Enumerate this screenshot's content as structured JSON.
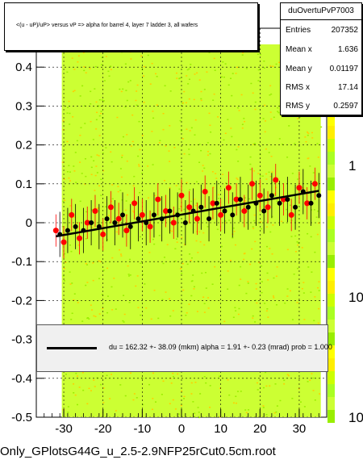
{
  "chart_data": {
    "type": "scatter",
    "title": "<(u - uP)/uP> versus   vP => alpha for barrel 4, layer 7 ladder 3, all wafers",
    "xlim": [
      -37,
      37
    ],
    "ylim": [
      -0.5,
      0.5
    ],
    "x_ticks": [
      -30,
      -20,
      -10,
      0,
      10,
      20,
      30
    ],
    "x_tick_labels": [
      "-30",
      "-20",
      "-10",
      "0",
      "10",
      "20",
      "30"
    ],
    "y_ticks": [
      -0.5,
      -0.4,
      -0.3,
      -0.2,
      -0.1,
      0,
      0.1,
      0.2,
      0.3,
      0.4
    ],
    "y_tick_labels": [
      "-0.5",
      "-0.4",
      "-0.3",
      "-0.2",
      "-0.1",
      "0",
      "0.1",
      "0.2",
      "0.3",
      "0.4"
    ],
    "z_tick_labels": [
      "1",
      "10",
      "10"
    ],
    "grid": true,
    "stats": {
      "name": "duOvertuPvP7003",
      "entries": {
        "label": "Entries",
        "value": "207352"
      },
      "mean_x": {
        "label": "Mean x",
        "value": "1.636"
      },
      "mean_y": {
        "label": "Mean y",
        "value": "0.01197"
      },
      "rms_x": {
        "label": "RMS x",
        "value": "17.14"
      },
      "rms_y": {
        "label": "RMS y",
        "value": "0.2597"
      }
    },
    "fit": {
      "text": "du =  162.32 +- 38.09 (mkm) alpha =    1.91 +-  0.23 (mrad) prob = 1.000",
      "line": {
        "x": [
          -32,
          35
        ],
        "y": [
          -0.035,
          0.082
        ]
      }
    },
    "profile_black": {
      "x": [
        -31,
        -29,
        -27,
        -25,
        -23,
        -21,
        -19,
        -17,
        -15,
        -13,
        -11,
        -9,
        -7,
        -5,
        -3,
        -1,
        1,
        3,
        5,
        7,
        9,
        11,
        13,
        15,
        17,
        19,
        21,
        23,
        25,
        27,
        29,
        31,
        33,
        35
      ],
      "y": [
        -0.03,
        -0.02,
        -0.01,
        -0.02,
        0.0,
        -0.01,
        0.01,
        0.0,
        0.02,
        -0.01,
        0.01,
        0.0,
        0.02,
        0.01,
        0.03,
        0.02,
        0.0,
        0.03,
        0.04,
        0.01,
        0.05,
        0.03,
        0.02,
        0.06,
        0.04,
        0.05,
        0.03,
        0.07,
        0.05,
        0.06,
        0.04,
        0.08,
        0.05,
        0.07
      ]
    },
    "profile_red": {
      "x": [
        -32,
        -30,
        -28,
        -26,
        -24,
        -22,
        -20,
        -18,
        -16,
        -14,
        -12,
        -10,
        -8,
        -6,
        -4,
        -2,
        0,
        2,
        4,
        6,
        8,
        10,
        12,
        14,
        16,
        18,
        20,
        22,
        24,
        26,
        28,
        30,
        32,
        34
      ],
      "y": [
        -0.02,
        -0.05,
        0.02,
        -0.04,
        0.0,
        0.03,
        -0.03,
        0.04,
        0.01,
        -0.02,
        0.05,
        0.02,
        -0.01,
        0.06,
        0.03,
        0.0,
        0.07,
        0.04,
        0.01,
        0.08,
        0.05,
        0.02,
        0.09,
        0.06,
        0.03,
        0.1,
        0.07,
        0.04,
        0.11,
        0.06,
        0.02,
        0.09,
        0.05,
        0.1
      ]
    },
    "colors": {
      "black": "#000000",
      "red": "#ff0000",
      "fill_main": "#ccff33",
      "fill_alt": "#99ee00",
      "dot": "#ffcc00",
      "grid": "#000000"
    },
    "filename": "Only_GPlotsG44G_u_2.5-2.9NFP25rCut0.5cm.root"
  }
}
